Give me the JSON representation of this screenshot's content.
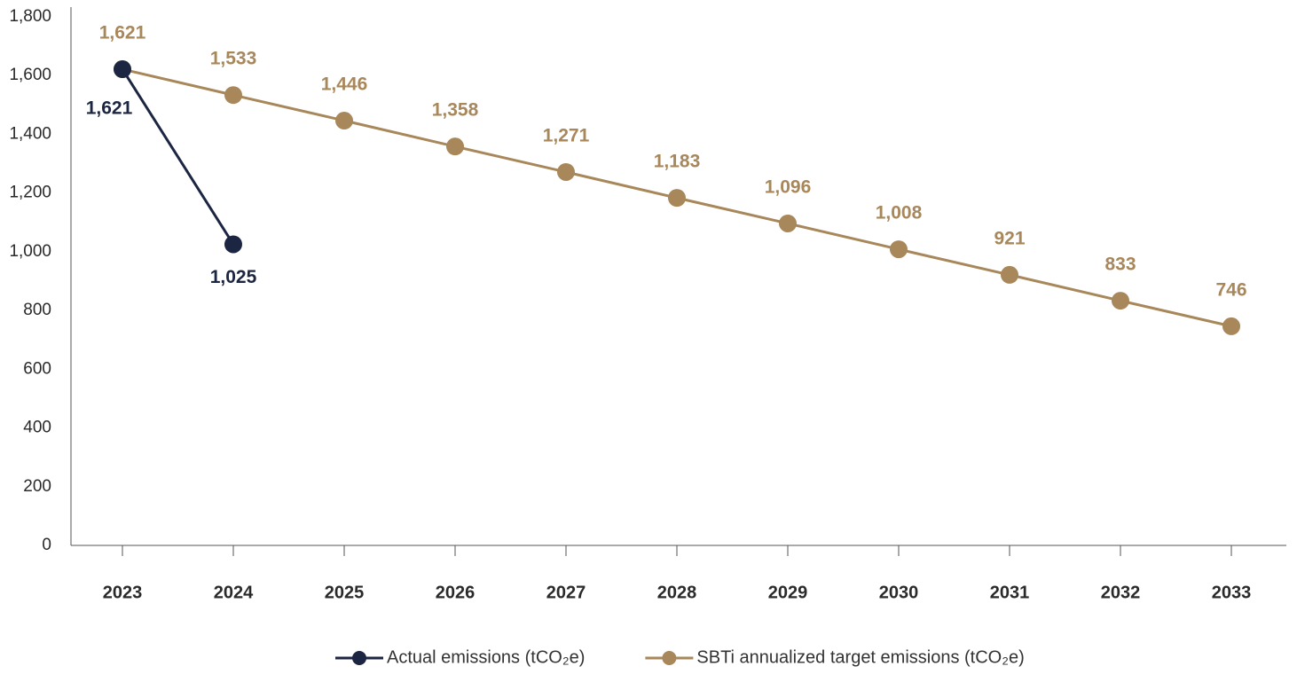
{
  "chart_data": {
    "type": "line",
    "categories": [
      "2023",
      "2024",
      "2025",
      "2026",
      "2027",
      "2028",
      "2029",
      "2030",
      "2031",
      "2032",
      "2033"
    ],
    "series": [
      {
        "name": "Actual emissions (tCO₂e)",
        "color": "#1c2541",
        "values": [
          1621,
          1025,
          null,
          null,
          null,
          null,
          null,
          null,
          null,
          null,
          null
        ],
        "value_labels": [
          "1,621",
          "1,025",
          null,
          null,
          null,
          null,
          null,
          null,
          null,
          null,
          null
        ]
      },
      {
        "name": "SBTi annualized target emissions (tCO₂e)",
        "color": "#a8875a",
        "values": [
          1621,
          1533,
          1446,
          1358,
          1271,
          1183,
          1096,
          1008,
          921,
          833,
          746
        ],
        "value_labels": [
          "1,621",
          "1,533",
          "1,446",
          "1,358",
          "1,271",
          "1,183",
          "1,096",
          "1,008",
          "921",
          "833",
          "746"
        ]
      }
    ],
    "ylim": [
      0,
      1800
    ],
    "yticks": [
      0,
      200,
      400,
      600,
      800,
      {
        "value": 1000,
        "label": "1,000"
      },
      {
        "value": 1200,
        "label": "1,200"
      },
      {
        "value": 1400,
        "label": "1,400"
      },
      {
        "value": 1600,
        "label": "1,600"
      },
      {
        "value": 1800,
        "label": "1,800"
      }
    ],
    "grid": false,
    "legend": "bottom"
  }
}
